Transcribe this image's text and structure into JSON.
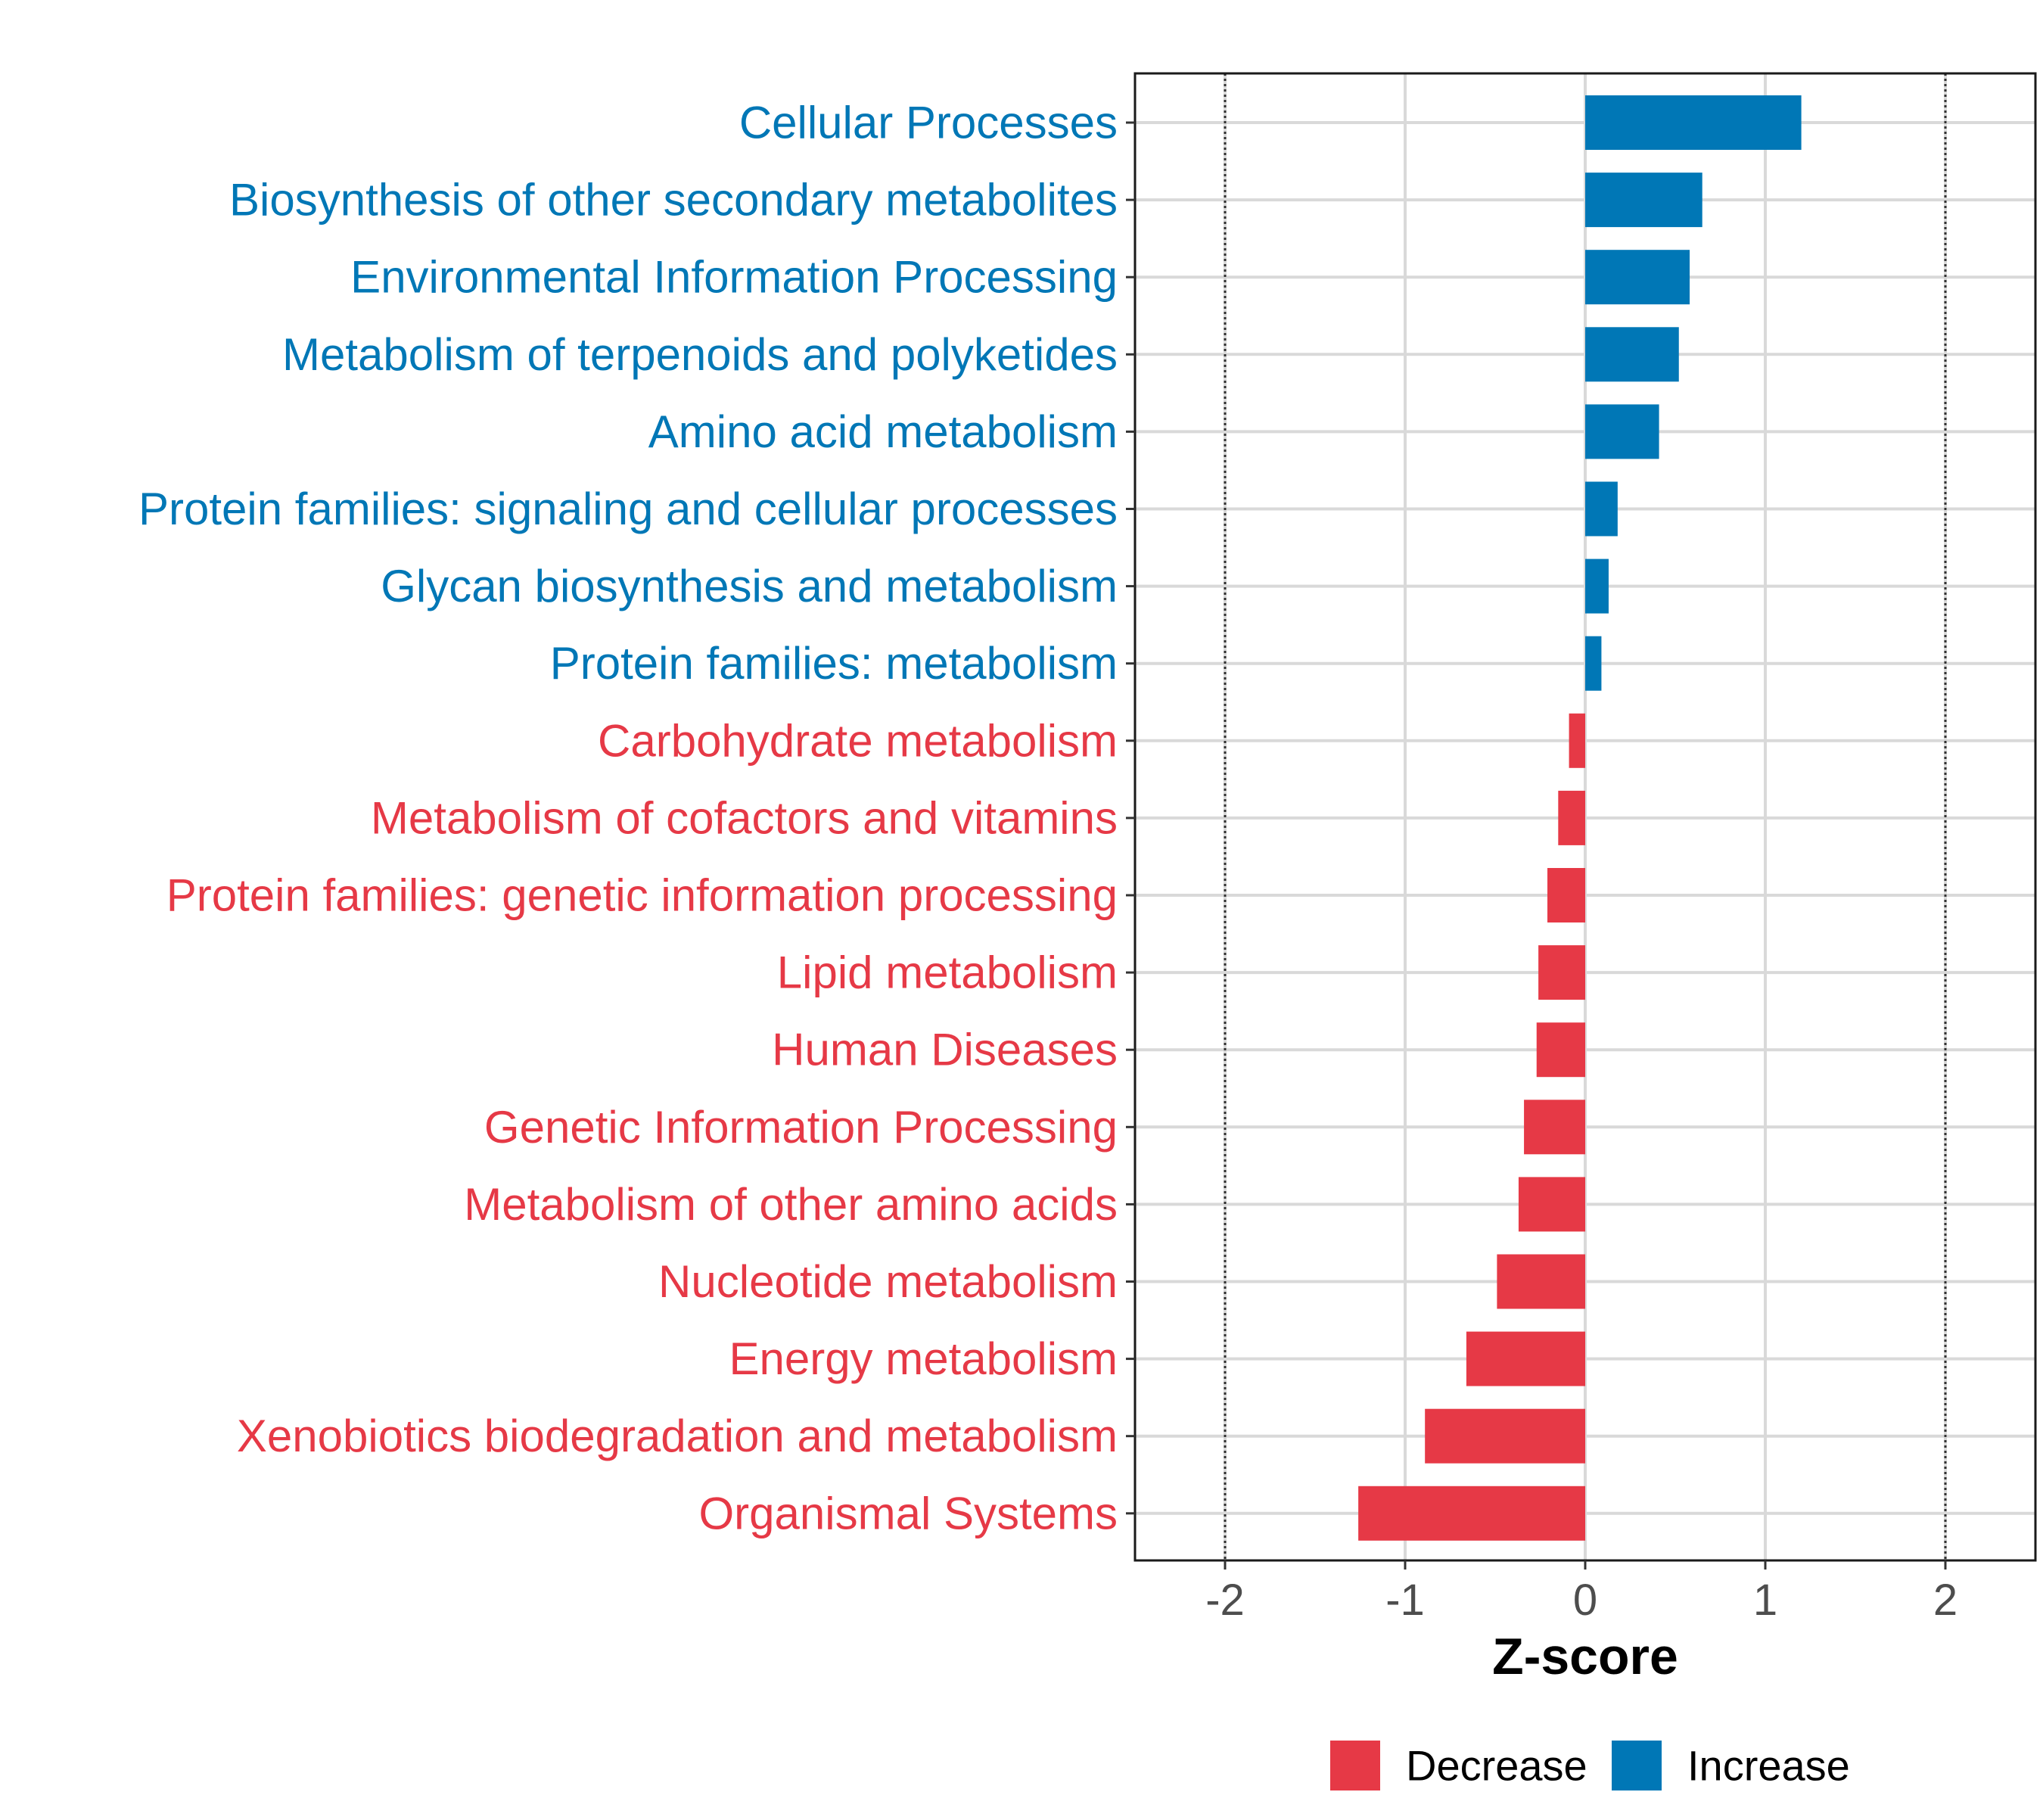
{
  "chart_data": {
    "type": "bar",
    "orientation": "horizontal",
    "title": "",
    "xlabel": "Z-score",
    "ylabel": "",
    "xlim": [
      -2.5,
      2.5
    ],
    "xticks": [
      -2,
      -1,
      0,
      1,
      2
    ],
    "xtick_labels": [
      "-2",
      "-1",
      "0",
      "1",
      "2"
    ],
    "reference_lines": [
      -2,
      2
    ],
    "grid": true,
    "legend_position": "bottom",
    "colors": {
      "Decrease": "#e63946",
      "Increase": "#0077b6"
    },
    "legend": [
      {
        "label": "Decrease",
        "color": "#e63946"
      },
      {
        "label": "Increase",
        "color": "#0077b6"
      }
    ],
    "categories": [
      "Cellular Processes",
      "Biosynthesis of other secondary metabolites",
      "Environmental Information Processing",
      "Metabolism of terpenoids and polyketides",
      "Amino acid metabolism",
      "Protein families: signaling and cellular processes",
      "Glycan biosynthesis and metabolism",
      "Protein families: metabolism",
      "Carbohydrate metabolism",
      "Metabolism of cofactors and vitamins",
      "Protein families: genetic information processing",
      "Lipid metabolism",
      "Human Diseases",
      "Genetic Information Processing",
      "Metabolism of other amino acids",
      "Nucleotide metabolism",
      "Energy metabolism",
      "Xenobiotics biodegradation and metabolism",
      "Organismal Systems"
    ],
    "values": [
      1.2,
      0.65,
      0.58,
      0.52,
      0.41,
      0.18,
      0.13,
      0.09,
      -0.09,
      -0.15,
      -0.21,
      -0.26,
      -0.27,
      -0.34,
      -0.37,
      -0.49,
      -0.66,
      -0.89,
      -1.26
    ],
    "groups": [
      "Increase",
      "Increase",
      "Increase",
      "Increase",
      "Increase",
      "Increase",
      "Increase",
      "Increase",
      "Decrease",
      "Decrease",
      "Decrease",
      "Decrease",
      "Decrease",
      "Decrease",
      "Decrease",
      "Decrease",
      "Decrease",
      "Decrease",
      "Decrease"
    ]
  }
}
